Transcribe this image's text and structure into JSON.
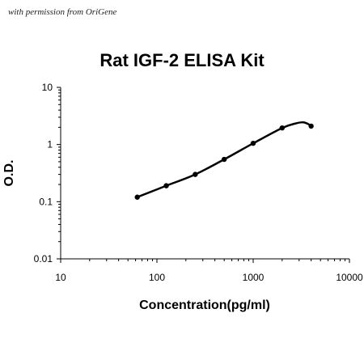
{
  "watermark": "with permission from OriGene",
  "chart_data": {
    "type": "line",
    "title": "Rat IGF-2 ELISA Kit",
    "xlabel": "Concentration(pg/ml)",
    "ylabel": "O.D.",
    "xscale": "log",
    "yscale": "log",
    "xlim": [
      10,
      10000
    ],
    "ylim": [
      0.01,
      10
    ],
    "xticks": [
      10,
      100,
      1000,
      10000
    ],
    "xtick_labels": [
      "10",
      "100",
      "1000",
      "10000"
    ],
    "yticks": [
      0.01,
      0.1,
      1,
      10
    ],
    "ytick_labels": [
      "0.01",
      "0.1",
      "1",
      "10"
    ],
    "grid": false,
    "legend": "none",
    "line_color": "#000000",
    "points": {
      "x": [
        62.5,
        125,
        250,
        500,
        1000,
        2000,
        4000
      ],
      "y": [
        0.12,
        0.19,
        0.3,
        0.55,
        1.05,
        1.95,
        2.1
      ]
    },
    "curve": {
      "x": [
        62.5,
        125,
        250,
        500,
        1000,
        2000,
        2800,
        3300,
        3700,
        4000
      ],
      "y": [
        0.12,
        0.19,
        0.3,
        0.55,
        1.05,
        1.95,
        2.35,
        2.45,
        2.3,
        2.1
      ]
    }
  }
}
